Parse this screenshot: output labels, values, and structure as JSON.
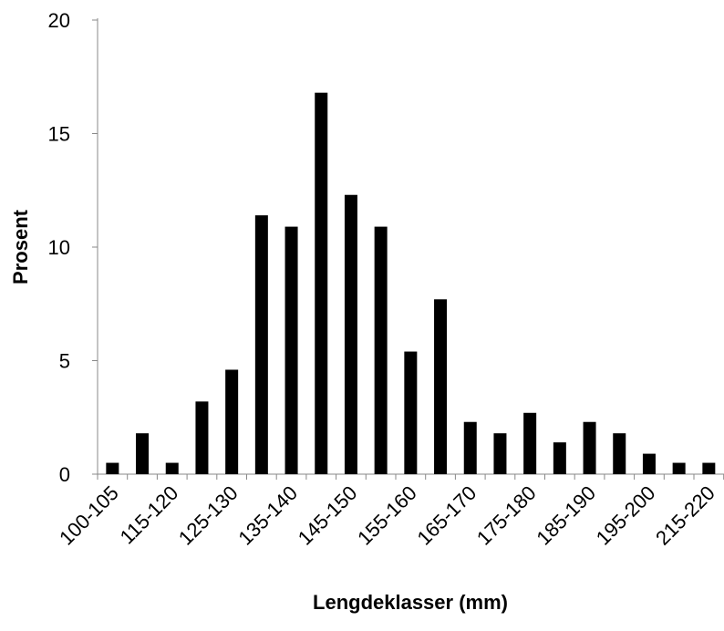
{
  "chart_data": {
    "type": "bar",
    "x_label": "Lengdeklasser (mm)",
    "y_label": "Prosent",
    "categories": [
      "100-105",
      null,
      "115-120",
      null,
      "125-130",
      null,
      "135-140",
      null,
      "145-150",
      null,
      "155-160",
      null,
      "165-170",
      null,
      "175-180",
      null,
      "185-190",
      null,
      "195-200",
      null,
      "215-220"
    ],
    "values": [
      0.5,
      1.8,
      0.5,
      3.2,
      4.6,
      11.4,
      10.9,
      16.8,
      12.3,
      10.9,
      5.4,
      7.7,
      2.3,
      1.8,
      2.7,
      1.4,
      2.3,
      1.8,
      0.9,
      0.5,
      0.5
    ],
    "color": "#000000",
    "ylim": [
      0,
      20
    ],
    "yticks": [
      0,
      5,
      10,
      15,
      20
    ],
    "grid": false
  }
}
